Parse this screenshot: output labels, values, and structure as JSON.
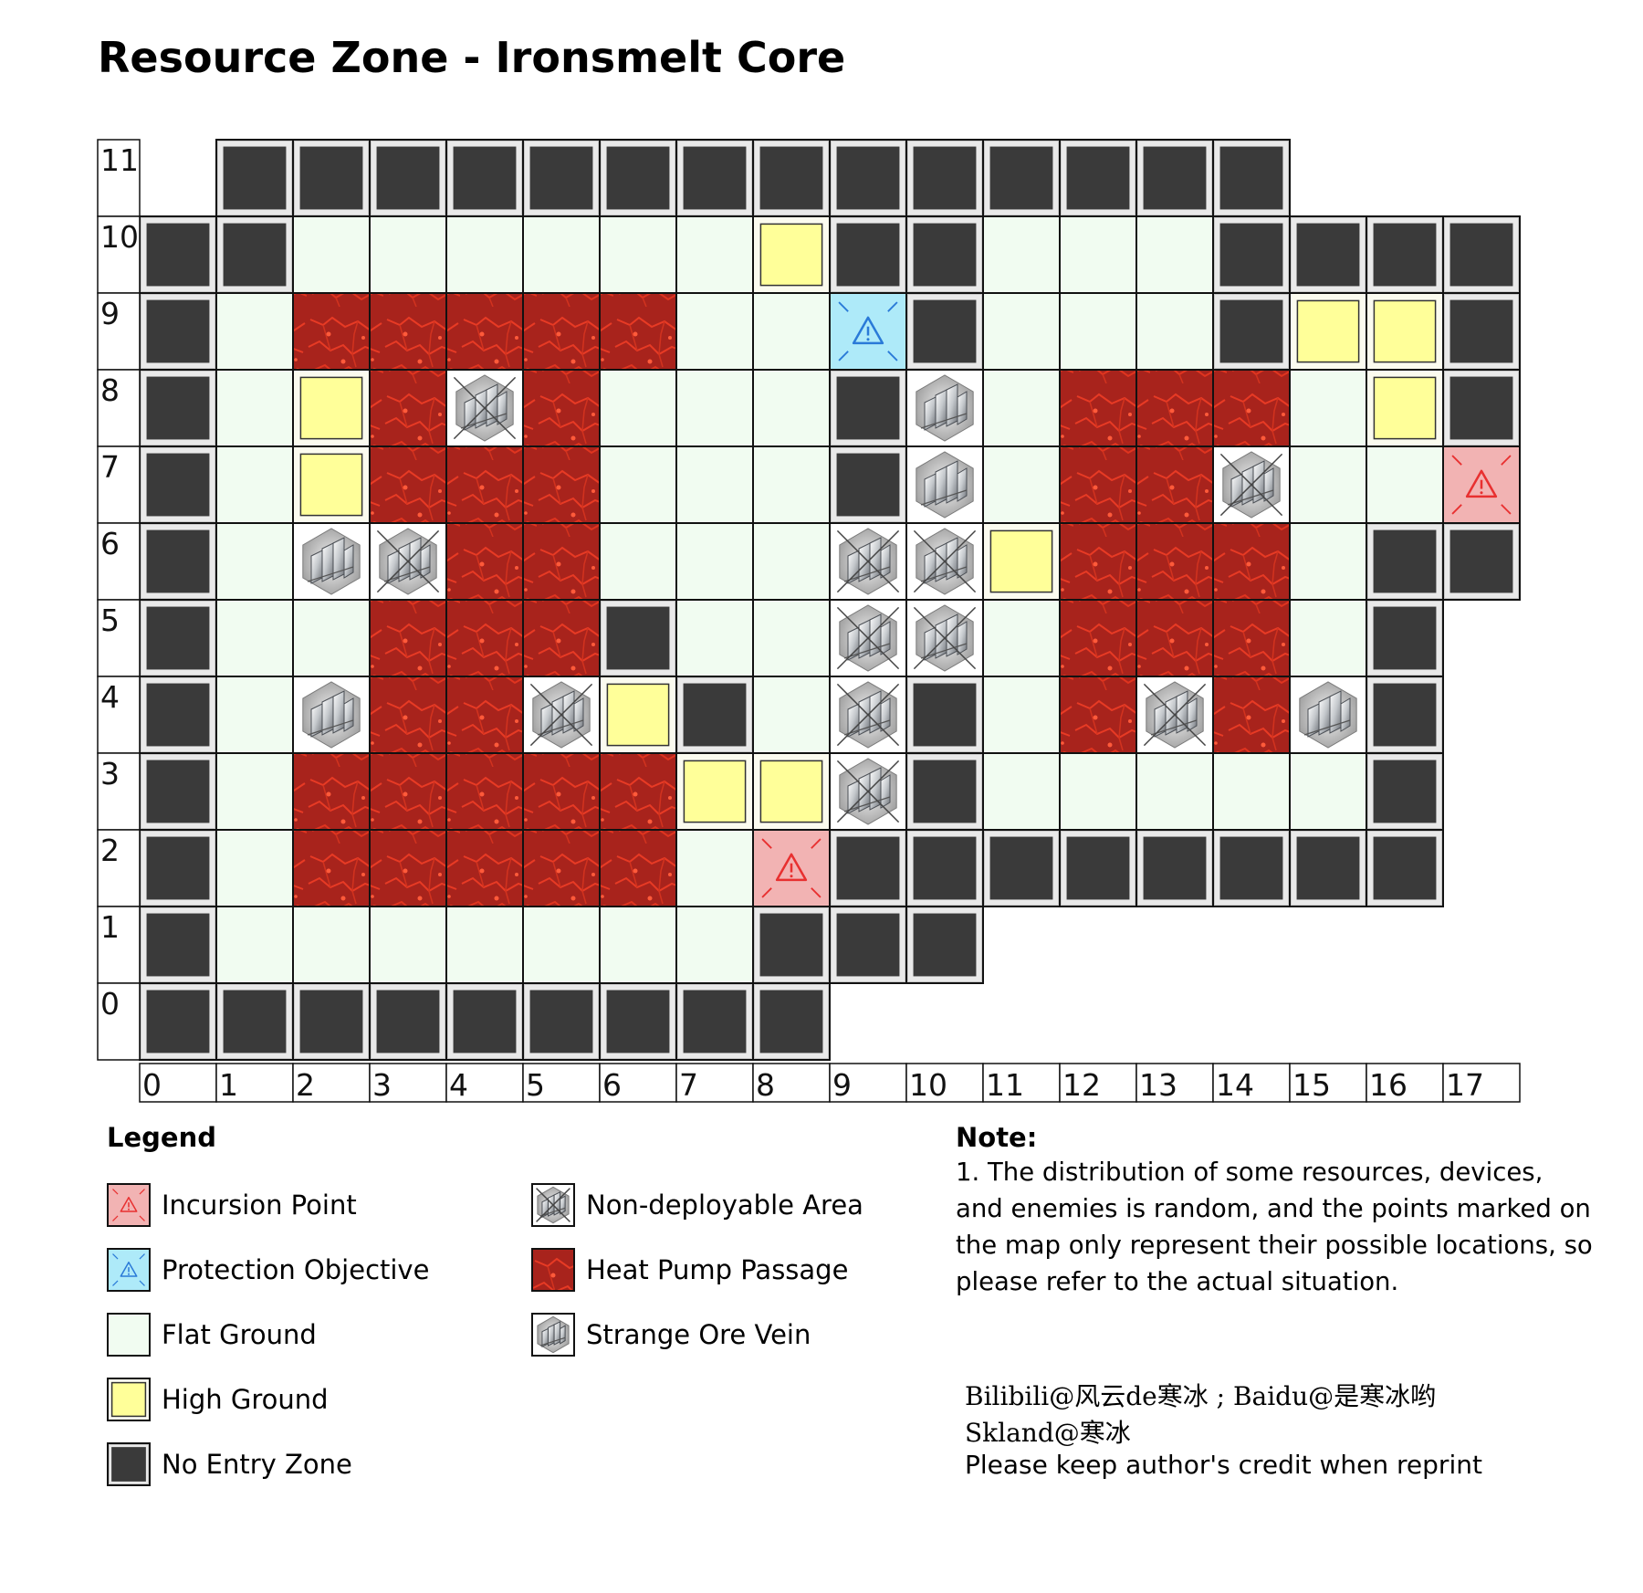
{
  "title": "Resource Zone - Ironsmelt Core",
  "legend": {
    "title": "Legend",
    "items": [
      {
        "key": "I",
        "label": "Incursion Point"
      },
      {
        "key": "P",
        "label": "Protection Objective"
      },
      {
        "key": "F",
        "label": "Flat Ground"
      },
      {
        "key": "H",
        "label": "High Ground"
      },
      {
        "key": "N",
        "label": "No Entry Zone"
      },
      {
        "key": "X",
        "label": "Non-deployable Area"
      },
      {
        "key": "R",
        "label": "Heat Pump Passage"
      },
      {
        "key": "O",
        "label": "Strange Ore Vein"
      }
    ]
  },
  "note": {
    "title": "Note:",
    "text": "1. The distribution of some resources, devices, and enemies is random, and the points marked on the map only represent their possible locations, so please refer to the actual situation."
  },
  "credits": {
    "line1": "Bilibili@风云de寒冰 ; Baidu@是寒冰哟",
    "line2": "Skland@寒冰",
    "line3": "Please keep author's credit when reprint"
  },
  "axes": {
    "x_labels": [
      "0",
      "1",
      "2",
      "3",
      "4",
      "5",
      "6",
      "7",
      "8",
      "9",
      "10",
      "11",
      "12",
      "13",
      "14",
      "15",
      "16",
      "17"
    ],
    "y_labels": [
      "11",
      "10",
      "9",
      "8",
      "7",
      "6",
      "5",
      "4",
      "3",
      "2",
      "1",
      "0"
    ]
  },
  "colors": {
    "flat": "#f1fcf1",
    "high": "#ffff99",
    "noentry": "#3a3a3a",
    "heat": "#a8231c",
    "incursion": "#f2b3b3",
    "protect": "#aeeaf9",
    "incursion_stroke": "#e83030",
    "protect_stroke": "#2a7ad8"
  },
  "map_rows": [
    " NNNNNNNNNNNNNN   ",
    "NNFFFFFFHNNFFFNNNN",
    "NFRRRRRFFPNFFFNHHN",
    "NFHRXRFFFNOFRRRFHN",
    "NFHRRRFFFNOFRRXFFI",
    "NFOXRRFFFXXHRRRFNN",
    "NFFRRRNFFXXFRRRFN ",
    "NFORRXHNFXNFRXRON ",
    "NFRRRRRHHXNFFFFFN ",
    "NFRRRRRFINNNNNNNN ",
    "NFFFFFFFNNN       ",
    "NNNNNNNNN         "
  ]
}
